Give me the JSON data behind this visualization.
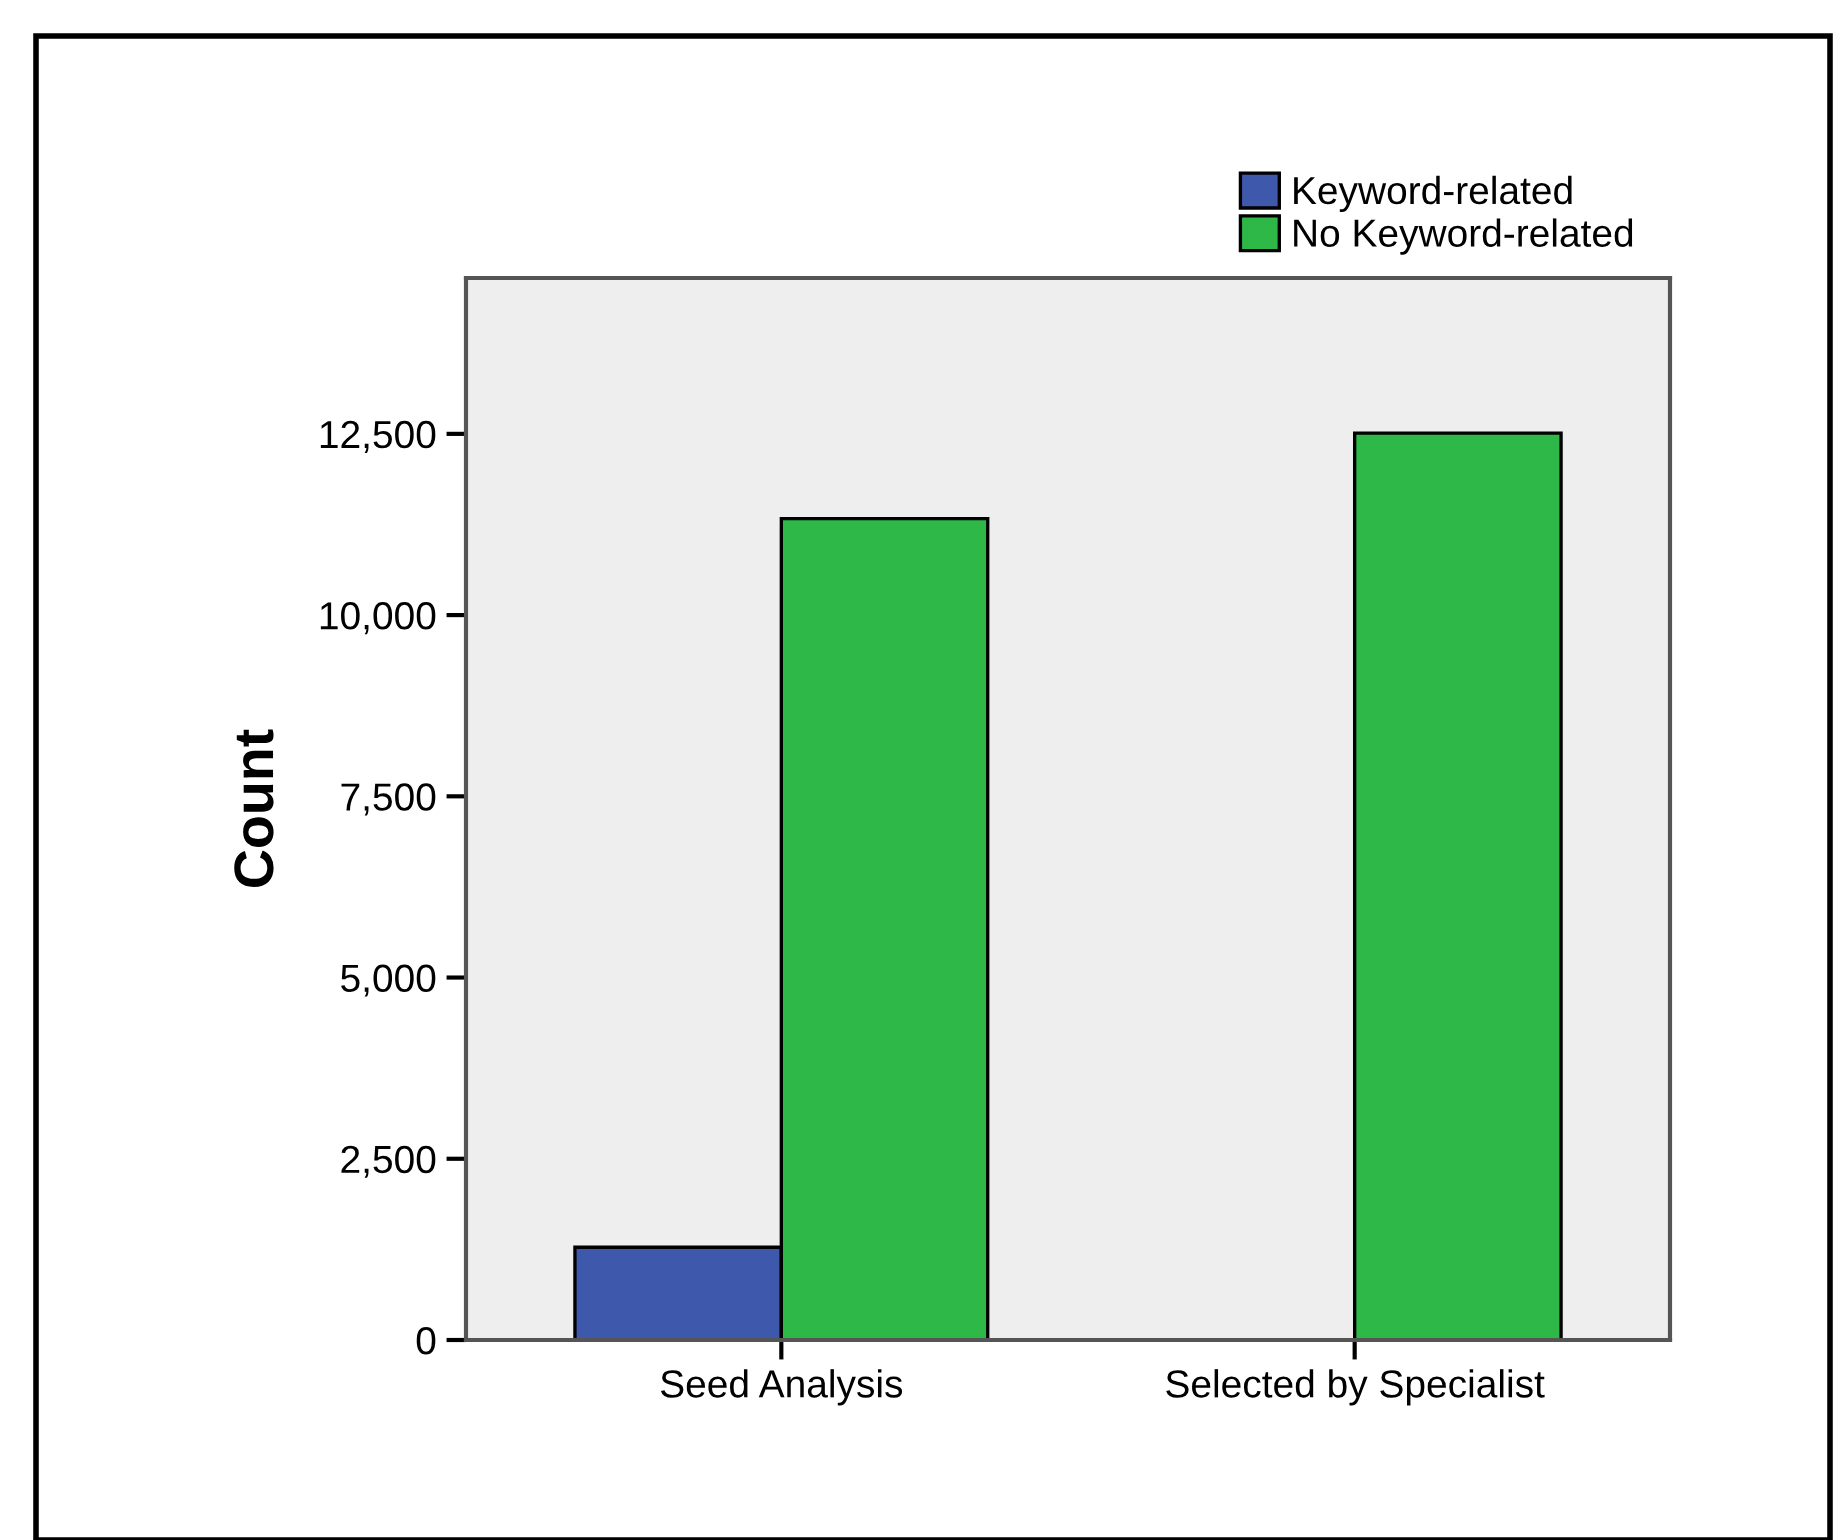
{
  "chart_data": {
    "type": "bar",
    "ylabel": "Count",
    "categories": [
      "Seed Analysis",
      "Selected by Specialist"
    ],
    "series": [
      {
        "name": "Keyword-related",
        "color": "#3e58ac",
        "values": [
          1280,
          null
        ]
      },
      {
        "name": "No Keyword-related",
        "color": "#2eb848",
        "values": [
          11330,
          12510
        ]
      }
    ],
    "ylim": [
      0,
      14650
    ],
    "yticks": [
      0,
      {
        "value": 2500,
        "label": "2,500"
      },
      {
        "value": 5000,
        "label": "5,000"
      },
      {
        "value": 7500,
        "label": "7,500"
      },
      {
        "value": 10000,
        "label": "10,000"
      },
      {
        "value": 12500,
        "label": "12,500"
      }
    ],
    "grid": false,
    "legend": "top right"
  }
}
